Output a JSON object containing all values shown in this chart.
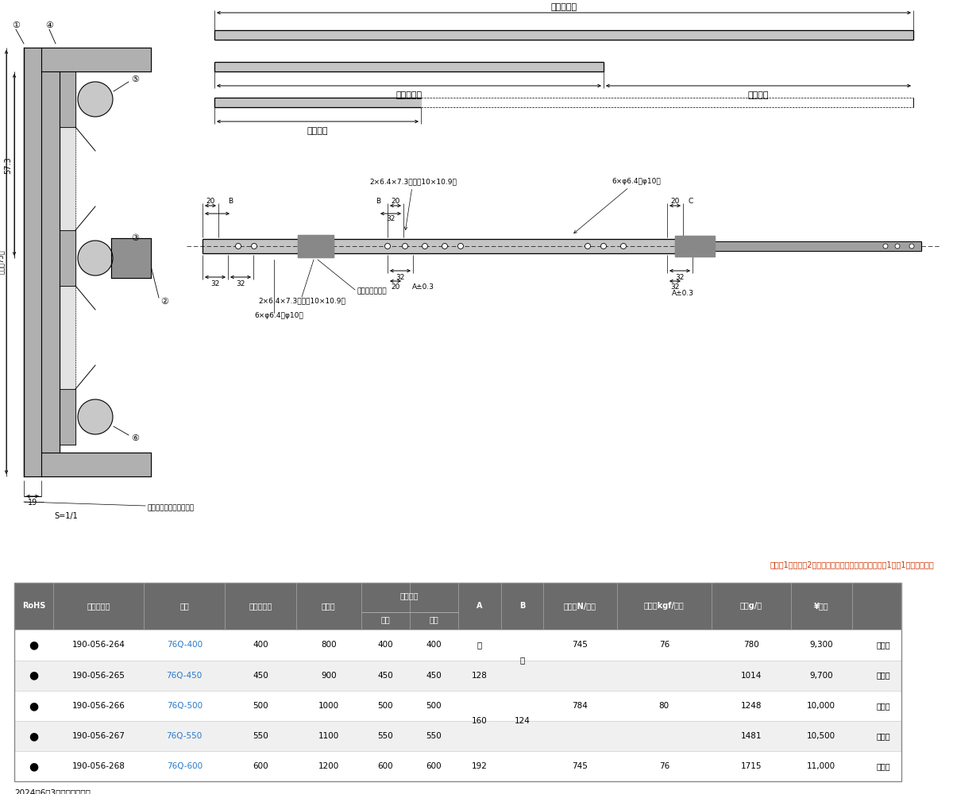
{
  "notice": "本品は1セット（2本）単位での販売です。ご注文数「1」で1セットです。",
  "footer": "2024年6月3日の情報です。",
  "scale": "S=1/1",
  "header_bg": "#6b6b6b",
  "header_fg": "#ffffff",
  "blue_color": "#2878c8",
  "notice_color": "#cc3300",
  "rows": [
    {
      "rohs": "●",
      "code": "190-056-264",
      "part": "76Q-400",
      "rail": "400",
      "total": "800",
      "front": "400",
      "rear": "400",
      "A": "－",
      "B": "－",
      "load_n": "745",
      "load_kgf": "76",
      "mass": "780",
      "price": "9,300",
      "unit": "セット"
    },
    {
      "rohs": "●",
      "code": "190-056-265",
      "part": "76Q-450",
      "rail": "450",
      "total": "900",
      "front": "450",
      "rear": "450",
      "A": "128",
      "B": "",
      "load_n": "",
      "load_kgf": "",
      "mass": "1014",
      "price": "9,700",
      "unit": "セット"
    },
    {
      "rohs": "●",
      "code": "190-056-266",
      "part": "76Q-500",
      "rail": "500",
      "total": "1000",
      "front": "500",
      "rear": "500",
      "A": "160",
      "B": "",
      "load_n": "784",
      "load_kgf": "80",
      "mass": "1248",
      "price": "10,000",
      "unit": "セット"
    },
    {
      "rohs": "●",
      "code": "190-056-267",
      "part": "76Q-550",
      "rail": "550",
      "total": "1100",
      "front": "550",
      "rear": "550",
      "A": "",
      "B": "124",
      "load_n": "",
      "load_kgf": "",
      "mass": "1481",
      "price": "10,500",
      "unit": "セット"
    },
    {
      "rohs": "●",
      "code": "190-056-268",
      "part": "76Q-600",
      "rail": "600",
      "total": "1200",
      "front": "600",
      "rear": "600",
      "A": "192",
      "B": "",
      "load_n": "745",
      "load_kgf": "76",
      "mass": "1715",
      "price": "11,000",
      "unit": "セット"
    }
  ]
}
